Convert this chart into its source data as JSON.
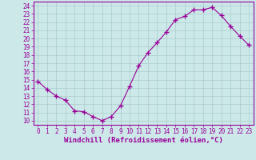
{
  "x": [
    0,
    1,
    2,
    3,
    4,
    5,
    6,
    7,
    8,
    9,
    10,
    11,
    12,
    13,
    14,
    15,
    16,
    17,
    18,
    19,
    20,
    21,
    22,
    23
  ],
  "y": [
    14.8,
    13.8,
    13.0,
    12.5,
    11.2,
    11.1,
    10.5,
    10.0,
    10.5,
    11.8,
    14.2,
    16.7,
    18.3,
    19.5,
    20.8,
    22.3,
    22.7,
    23.5,
    23.5,
    23.8,
    22.8,
    21.5,
    20.3,
    19.2
  ],
  "line_color": "#990099",
  "marker": "+",
  "marker_size": 4,
  "bg_color": "#cce8e8",
  "grid_color": "#aacccc",
  "ylabel_ticks": [
    10,
    11,
    12,
    13,
    14,
    15,
    16,
    17,
    18,
    19,
    20,
    21,
    22,
    23,
    24
  ],
  "xlabel": "Windchill (Refroidissement éolien,°C)",
  "ylim": [
    9.5,
    24.5
  ],
  "xlim": [
    -0.5,
    23.5
  ],
  "tick_color": "#990099",
  "label_color": "#990099",
  "axis_spine_color": "#990099",
  "tick_fontsize": 5.5,
  "xlabel_fontsize": 6.5
}
